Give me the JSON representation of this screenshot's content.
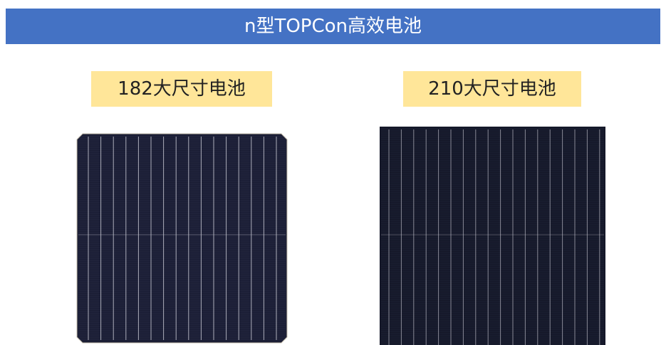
{
  "header": {
    "title": "n型TOPCon高效电池"
  },
  "cells": [
    {
      "label": "182大尺寸电池"
    },
    {
      "label": "210大尺寸电池"
    }
  ]
}
